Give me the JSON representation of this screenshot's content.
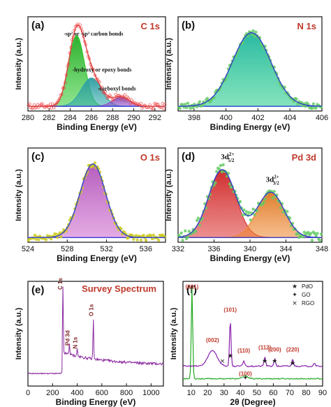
{
  "chart_data": [
    {
      "letter": "(a)",
      "title": "C 1s",
      "type": "area",
      "xlabel": "Binding Energy (eV)",
      "ylabel": "Intensity (a.u.)",
      "xlim": [
        280,
        293
      ],
      "xticks": [
        280,
        282,
        284,
        286,
        288,
        290,
        292
      ],
      "baseline": 0.05,
      "series": [
        {
          "name": "-sp2 or -sp3 carbon bonds",
          "type": "gaussian",
          "center": 284.6,
          "height": 0.75,
          "width": 0.75,
          "color": "#33cc33",
          "fill": "#22aa22"
        },
        {
          "name": "-hydroxy or epoxy bonds",
          "type": "gaussian",
          "center": 286.0,
          "height": 0.3,
          "width": 0.95,
          "color": "#33aaaa",
          "fill": "#2a9aa0"
        },
        {
          "name": "-carboxyl bonds",
          "type": "gaussian",
          "center": 288.8,
          "height": 0.1,
          "width": 0.8,
          "color": "#9955cc",
          "fill": "#7a44aa"
        }
      ],
      "annotations": [
        {
          "text": "-sp² or -sp³ carbon bonds",
          "x": 286.2,
          "y": 0.8
        },
        {
          "text": "-hydroxy or epoxy bonds",
          "x": 287.0,
          "y": 0.42
        },
        {
          "text": "-carboxyl bonds",
          "x": 288.4,
          "y": 0.22
        }
      ]
    },
    {
      "letter": "(b)",
      "title": "N 1s",
      "type": "area",
      "xlabel": "Binding Energy (eV)",
      "ylabel": "Intensity (a.u.)",
      "xlim": [
        397,
        406
      ],
      "xticks": [
        398,
        400,
        402,
        404,
        406
      ],
      "baseline": 0.05,
      "series": [
        {
          "name": "N 1s",
          "type": "gaussian",
          "center": 401.6,
          "height": 0.78,
          "width": 1.2,
          "color": "#22cc88",
          "fill": "#1fb5a0"
        }
      ]
    },
    {
      "letter": "(c)",
      "title": "O 1s",
      "type": "area",
      "xlabel": "Binding Energy (eV)",
      "ylabel": "Intensity (a.u.)",
      "xlim": [
        524,
        538
      ],
      "xticks": [
        524,
        528,
        532,
        536
      ],
      "baseline": 0.05,
      "series": [
        {
          "name": "O 1s",
          "type": "gaussian",
          "center": 530.6,
          "height": 0.78,
          "width": 1.3,
          "color": "#cc66cc",
          "fill": "#b055b8"
        }
      ]
    },
    {
      "letter": "(d)",
      "title": "Pd 3d",
      "type": "area",
      "xlabel": "Binding Energy (eV)",
      "ylabel": "Intensity (a.u.)",
      "xlim": [
        332,
        348
      ],
      "xticks": [
        332,
        336,
        340,
        344,
        348
      ],
      "baseline": 0.05,
      "series": [
        {
          "name": "3d5/2",
          "type": "gaussian",
          "center": 336.9,
          "height": 0.72,
          "width": 1.5,
          "color": "#dd3333",
          "fill": "#cc2222"
        },
        {
          "name": "3d3/2",
          "type": "gaussian",
          "center": 342.3,
          "height": 0.48,
          "width": 1.5,
          "color": "#ee8833",
          "fill": "#dd7722"
        }
      ],
      "annotations": [
        {
          "main": "3d",
          "sup": "2+",
          "sub": "5/2",
          "x": 337.5,
          "y": 0.88
        },
        {
          "main": "3d",
          "sup": "2+",
          "sub": "3/2",
          "x": 342.5,
          "y": 0.64
        }
      ]
    },
    {
      "letter": "(e)",
      "title": "Survey Spectrum",
      "type": "line",
      "xlabel": "Binding Energy (eV)",
      "ylabel": "Intensity (a.u.)",
      "xlim": [
        0,
        1100
      ],
      "xticks": [
        0,
        200,
        400,
        600,
        800,
        1000
      ],
      "peaks": [
        {
          "label": "C 1s",
          "x": 284,
          "y": 0.92
        },
        {
          "label": "Pd 3d",
          "x": 337,
          "y": 0.36
        },
        {
          "label": "N 1s",
          "x": 400,
          "y": 0.33
        },
        {
          "label": "O 1s",
          "x": 531,
          "y": 0.64
        }
      ]
    },
    {
      "letter": "(f)",
      "type": "line",
      "xlabel": "2θ (Degree)",
      "ylabel": "Intensity (a.u.)",
      "xlim": [
        5,
        90
      ],
      "xticks": [
        10,
        20,
        30,
        40,
        50,
        60,
        70,
        80,
        90
      ],
      "legend": [
        {
          "marker": "★",
          "label": "PdO"
        },
        {
          "marker": "✦",
          "label": "GO"
        },
        {
          "marker": "×",
          "label": "RGO"
        }
      ],
      "peak_labels": [
        {
          "text": "(001)",
          "x": 10.5,
          "y": 0.93
        },
        {
          "text": "(101)",
          "x": 33.8,
          "y": 0.71
        },
        {
          "text": "(002)",
          "x": 23.0,
          "y": 0.42
        },
        {
          "text": "(110)",
          "x": 42.0,
          "y": 0.32
        },
        {
          "text": "(112)",
          "x": 54.8,
          "y": 0.35
        },
        {
          "text": "(200)",
          "x": 60.8,
          "y": 0.33
        },
        {
          "text": "(220)",
          "x": 71.8,
          "y": 0.33
        },
        {
          "text": "(100)",
          "x": 43.0,
          "y": 0.1
        }
      ],
      "series": [
        {
          "name": "GO",
          "color": "#22aa22"
        },
        {
          "name": "RGO/PdO",
          "color": "#8822aa"
        }
      ]
    }
  ]
}
